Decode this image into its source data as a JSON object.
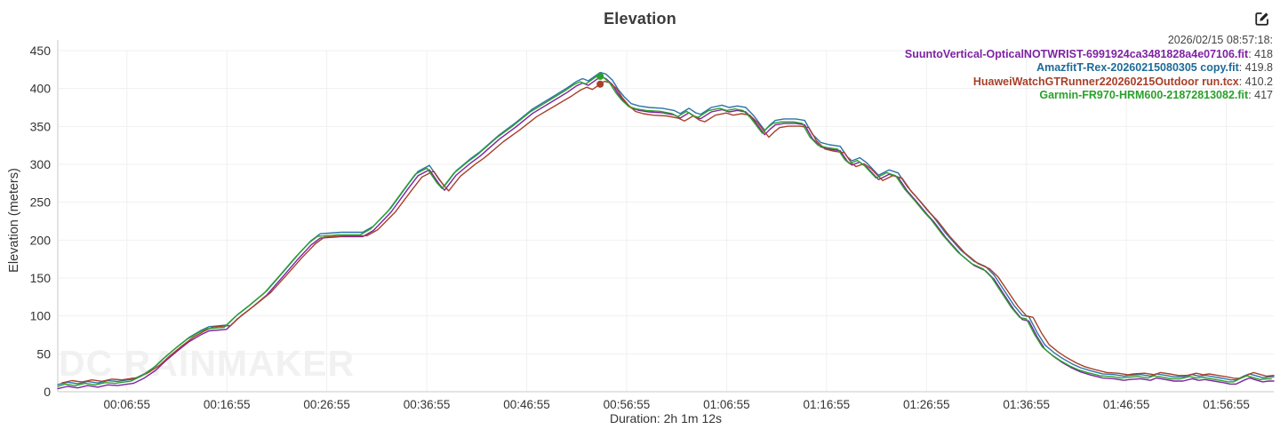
{
  "header": {
    "title": "Elevation"
  },
  "watermark": "DC RAINMAKER",
  "tooltip": {
    "timestamp": "2026/02/15 08:57:18:",
    "entries": [
      {
        "label": "SuuntoVertical-OpticalNOTWRIST-6991924ca3481828a4e07106.fit",
        "value_display": ": 418",
        "color": "#7e22a3"
      },
      {
        "label": "AmazfitT-Rex-20260215080305 copy.fit",
        "value_display": ": 419.8",
        "color": "#1e6b99"
      },
      {
        "label": "HuaweiWatchGTRunner220260215Outdoor run.tcx",
        "value_display": ": 410.2",
        "color": "#a8402a"
      },
      {
        "label": "Garmin-FR970-HRM600-21872813082.fit",
        "value_display": ": 417",
        "color": "#2aa02a"
      }
    ]
  },
  "chart_data": {
    "type": "line",
    "title": "Elevation",
    "xlabel": "Duration: 2h 1m 12s",
    "ylabel": "Elevation (meters)",
    "ylim": [
      0,
      450
    ],
    "xlim_seconds": [
      0,
      7300
    ],
    "grid": true,
    "legend_position": "top-right-tooltip",
    "y_ticks": [
      0,
      50,
      100,
      150,
      200,
      250,
      300,
      350,
      400,
      450
    ],
    "x_ticks": [
      {
        "t": 415,
        "label": "00:06:55"
      },
      {
        "t": 1015,
        "label": "00:16:55"
      },
      {
        "t": 1615,
        "label": "00:26:55"
      },
      {
        "t": 2215,
        "label": "00:36:55"
      },
      {
        "t": 2815,
        "label": "00:46:55"
      },
      {
        "t": 3415,
        "label": "00:56:55"
      },
      {
        "t": 4015,
        "label": "01:06:55"
      },
      {
        "t": 4615,
        "label": "01:16:55"
      },
      {
        "t": 5215,
        "label": "01:26:55"
      },
      {
        "t": 5815,
        "label": "01:36:55"
      },
      {
        "t": 6415,
        "label": "01:46:55"
      },
      {
        "t": 7015,
        "label": "01:56:55"
      }
    ],
    "base_profile_t_elev": [
      [
        0,
        8
      ],
      [
        60,
        11
      ],
      [
        120,
        9
      ],
      [
        180,
        12
      ],
      [
        240,
        10
      ],
      [
        300,
        13
      ],
      [
        360,
        12
      ],
      [
        420,
        14
      ],
      [
        454,
        15
      ],
      [
        520,
        22
      ],
      [
        587,
        32
      ],
      [
        650,
        45
      ],
      [
        720,
        58
      ],
      [
        790,
        70
      ],
      [
        860,
        79
      ],
      [
        908,
        84
      ],
      [
        1014,
        86
      ],
      [
        1080,
        100
      ],
      [
        1150,
        112
      ],
      [
        1254,
        131
      ],
      [
        1350,
        155
      ],
      [
        1440,
        178
      ],
      [
        1521,
        197
      ],
      [
        1575,
        206
      ],
      [
        1700,
        208
      ],
      [
        1831,
        208
      ],
      [
        1895,
        216
      ],
      [
        2000,
        240
      ],
      [
        2100,
        270
      ],
      [
        2162,
        288
      ],
      [
        2231,
        296
      ],
      [
        2290,
        277
      ],
      [
        2322,
        269
      ],
      [
        2392,
        289
      ],
      [
        2480,
        305
      ],
      [
        2536,
        314
      ],
      [
        2650,
        336
      ],
      [
        2749,
        352
      ],
      [
        2850,
        370
      ],
      [
        2963,
        385
      ],
      [
        3060,
        398
      ],
      [
        3112,
        406
      ],
      [
        3150,
        410
      ],
      [
        3185,
        407
      ],
      [
        3256,
        418
      ],
      [
        3290,
        416
      ],
      [
        3330,
        408
      ],
      [
        3363,
        396
      ],
      [
        3400,
        386
      ],
      [
        3443,
        377
      ],
      [
        3490,
        374
      ],
      [
        3550,
        372
      ],
      [
        3630,
        371
      ],
      [
        3700,
        368
      ],
      [
        3737,
        364
      ],
      [
        3790,
        371
      ],
      [
        3830,
        365
      ],
      [
        3859,
        363
      ],
      [
        3923,
        372
      ],
      [
        3988,
        375
      ],
      [
        4030,
        372
      ],
      [
        4080,
        374
      ],
      [
        4130,
        372
      ],
      [
        4175,
        362
      ],
      [
        4244,
        342
      ],
      [
        4275,
        349
      ],
      [
        4308,
        355
      ],
      [
        4360,
        357
      ],
      [
        4430,
        357
      ],
      [
        4484,
        355
      ],
      [
        4530,
        337
      ],
      [
        4580,
        326
      ],
      [
        4633,
        323
      ],
      [
        4697,
        321
      ],
      [
        4740,
        307
      ],
      [
        4767,
        302
      ],
      [
        4815,
        306
      ],
      [
        4858,
        299
      ],
      [
        4927,
        283
      ],
      [
        4991,
        290
      ],
      [
        5045,
        286
      ],
      [
        5100,
        268
      ],
      [
        5152,
        255
      ],
      [
        5220,
        237
      ],
      [
        5258,
        228
      ],
      [
        5330,
        207
      ],
      [
        5419,
        185
      ],
      [
        5500,
        170
      ],
      [
        5570,
        163
      ],
      [
        5620,
        152
      ],
      [
        5686,
        130
      ],
      [
        5740,
        112
      ],
      [
        5790,
        99
      ],
      [
        5830,
        97
      ],
      [
        5880,
        76
      ],
      [
        5926,
        60
      ],
      [
        5980,
        50
      ],
      [
        6033,
        42
      ],
      [
        6090,
        35
      ],
      [
        6140,
        30
      ],
      [
        6200,
        26
      ],
      [
        6273,
        22
      ],
      [
        6340,
        21
      ],
      [
        6400,
        19
      ],
      [
        6433,
        20
      ],
      [
        6500,
        21
      ],
      [
        6560,
        19
      ],
      [
        6594,
        22
      ],
      [
        6650,
        20
      ],
      [
        6700,
        18
      ],
      [
        6754,
        18
      ],
      [
        6810,
        21
      ],
      [
        6850,
        19
      ],
      [
        6887,
        20
      ],
      [
        6940,
        18
      ],
      [
        6994,
        16
      ],
      [
        7040,
        14
      ],
      [
        7074,
        14
      ],
      [
        7120,
        19
      ],
      [
        7154,
        22
      ],
      [
        7200,
        19
      ],
      [
        7234,
        17
      ],
      [
        7270,
        18
      ],
      [
        7300,
        18
      ]
    ],
    "series": [
      {
        "name": "SuuntoVertical-OpticalNOTWRIST-6991924ca3481828a4e07106.fit",
        "color": "#7e22a3",
        "dx_seconds": 0,
        "dy_meters": -4,
        "scale": 1.003,
        "value_at_cursor": 418
      },
      {
        "name": "AmazfitT-Rex-20260215080305 copy.fit",
        "color": "#2d72a8",
        "dx_seconds": 0,
        "dy_meters": 1.5,
        "scale": 1.004,
        "value_at_cursor": 419.8
      },
      {
        "name": "HuaweiWatchGTRunner220260215Outdoor run.tcx",
        "color": "#a8402a",
        "dx_seconds": 25,
        "dy_meters": 4,
        "scale": 0.97,
        "value_at_cursor": 410.2
      },
      {
        "name": "Garmin-FR970-HRM600-21872813082.fit",
        "color": "#2aa02a",
        "dx_seconds": -15,
        "dy_meters": -1,
        "scale": 1.0,
        "value_at_cursor": 417
      }
    ],
    "cursor": {
      "t": 3256,
      "marker_series_indexes": [
        2,
        3
      ],
      "marker_radius": 4
    },
    "colors": {
      "grid": "#f0f0f0",
      "axis": "#c9c9c9",
      "tick_text": "#333333"
    }
  }
}
